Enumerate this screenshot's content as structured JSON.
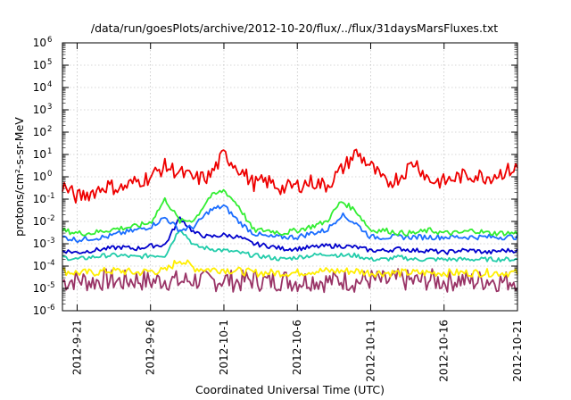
{
  "chart_data": {
    "type": "line",
    "title": "/data/run/goesPlots/archive/2012-10-20/flux/../flux/31daysMarsFluxes.txt",
    "xlabel": "Coordinated Universal Time (UTC)",
    "ylabel": "protons/cm²-s-sr-MeV",
    "y_scale": "log",
    "ylim": [
      1e-06,
      1000000.0
    ],
    "y_ticks": [
      {
        "value": 1e-06,
        "base": "10",
        "exp": "-6"
      },
      {
        "value": 1e-05,
        "base": "10",
        "exp": "-5"
      },
      {
        "value": 0.0001,
        "base": "10",
        "exp": "-4"
      },
      {
        "value": 0.001,
        "base": "10",
        "exp": "-3"
      },
      {
        "value": 0.01,
        "base": "10",
        "exp": "-2"
      },
      {
        "value": 0.1,
        "base": "10",
        "exp": "-1"
      },
      {
        "value": 1.0,
        "base": "10",
        "exp": "0"
      },
      {
        "value": 10.0,
        "base": "10",
        "exp": "1"
      },
      {
        "value": 100.0,
        "base": "10",
        "exp": "2"
      },
      {
        "value": 1000.0,
        "base": "10",
        "exp": "3"
      },
      {
        "value": 10000.0,
        "base": "10",
        "exp": "4"
      },
      {
        "value": 100000.0,
        "base": "10",
        "exp": "5"
      },
      {
        "value": 1000000.0,
        "base": "10",
        "exp": "6"
      }
    ],
    "xlim": [
      "2012-09-20",
      "2012-10-21"
    ],
    "x_ticks": [
      "2012-9-21",
      "2012-9-26",
      "2012-10-1",
      "2012-10-6",
      "2012-10-11",
      "2012-10-16",
      "2012-10-21"
    ],
    "grid": true,
    "legend": "none",
    "series": [
      {
        "color": "#ee0000",
        "x": [
          "2012-09-20",
          "2012-09-21",
          "2012-09-22",
          "2012-09-23",
          "2012-09-24",
          "2012-09-25",
          "2012-09-26",
          "2012-09-27",
          "2012-09-28",
          "2012-09-29",
          "2012-09-30",
          "2012-10-01",
          "2012-10-02",
          "2012-10-03",
          "2012-10-04",
          "2012-10-05",
          "2012-10-06",
          "2012-10-07",
          "2012-10-08",
          "2012-10-09",
          "2012-10-10",
          "2012-10-11",
          "2012-10-12",
          "2012-10-13",
          "2012-10-14",
          "2012-10-15",
          "2012-10-16",
          "2012-10-17",
          "2012-10-18",
          "2012-10-19",
          "2012-10-20",
          "2012-10-21"
        ],
        "values": [
          0.4,
          0.12,
          0.2,
          0.4,
          0.3,
          0.6,
          1.0,
          3.0,
          1.5,
          0.8,
          1.0,
          10.0,
          2.5,
          0.5,
          0.6,
          0.3,
          0.4,
          0.6,
          0.4,
          2.0,
          12.0,
          3.0,
          0.5,
          1.0,
          5.0,
          0.7,
          0.6,
          1.0,
          1.2,
          1.0,
          1.6,
          2.5
        ]
      },
      {
        "color": "#33ee33",
        "x": [
          "2012-09-20",
          "2012-09-21",
          "2012-09-22",
          "2012-09-23",
          "2012-09-24",
          "2012-09-25",
          "2012-09-26",
          "2012-09-27",
          "2012-09-28",
          "2012-09-29",
          "2012-09-30",
          "2012-10-01",
          "2012-10-02",
          "2012-10-03",
          "2012-10-04",
          "2012-10-05",
          "2012-10-06",
          "2012-10-07",
          "2012-10-08",
          "2012-10-09",
          "2012-10-10",
          "2012-10-11",
          "2012-10-12",
          "2012-10-13",
          "2012-10-14",
          "2012-10-15",
          "2012-10-16",
          "2012-10-17",
          "2012-10-18",
          "2012-10-19",
          "2012-10-20",
          "2012-10-21"
        ],
        "values": [
          0.004,
          0.003,
          0.003,
          0.004,
          0.005,
          0.006,
          0.009,
          0.1,
          0.01,
          0.012,
          0.12,
          0.25,
          0.05,
          0.004,
          0.004,
          0.003,
          0.004,
          0.006,
          0.01,
          0.08,
          0.03,
          0.004,
          0.004,
          0.003,
          0.003,
          0.004,
          0.003,
          0.003,
          0.004,
          0.003,
          0.003,
          0.003
        ]
      },
      {
        "color": "#1a6dff",
        "x": [
          "2012-09-20",
          "2012-09-21",
          "2012-09-22",
          "2012-09-23",
          "2012-09-24",
          "2012-09-25",
          "2012-09-26",
          "2012-09-27",
          "2012-09-28",
          "2012-09-29",
          "2012-09-30",
          "2012-10-01",
          "2012-10-02",
          "2012-10-03",
          "2012-10-04",
          "2012-10-05",
          "2012-10-06",
          "2012-10-07",
          "2012-10-08",
          "2012-10-09",
          "2012-10-10",
          "2012-10-11",
          "2012-10-12",
          "2012-10-13",
          "2012-10-14",
          "2012-10-15",
          "2012-10-16",
          "2012-10-17",
          "2012-10-18",
          "2012-10-19",
          "2012-10-20",
          "2012-10-21"
        ],
        "values": [
          0.002,
          0.0015,
          0.0018,
          0.002,
          0.003,
          0.004,
          0.006,
          0.015,
          0.004,
          0.006,
          0.03,
          0.05,
          0.01,
          0.003,
          0.002,
          0.002,
          0.002,
          0.003,
          0.004,
          0.02,
          0.008,
          0.002,
          0.002,
          0.002,
          0.002,
          0.002,
          0.002,
          0.002,
          0.002,
          0.002,
          0.002,
          0.002
        ]
      },
      {
        "color": "#0000cc",
        "x": [
          "2012-09-20",
          "2012-09-21",
          "2012-09-22",
          "2012-09-23",
          "2012-09-24",
          "2012-09-25",
          "2012-09-26",
          "2012-09-27",
          "2012-09-28",
          "2012-09-29",
          "2012-09-30",
          "2012-10-01",
          "2012-10-02",
          "2012-10-03",
          "2012-10-04",
          "2012-10-05",
          "2012-10-06",
          "2012-10-07",
          "2012-10-08",
          "2012-10-09",
          "2012-10-10",
          "2012-10-11",
          "2012-10-12",
          "2012-10-13",
          "2012-10-14",
          "2012-10-15",
          "2012-10-16",
          "2012-10-17",
          "2012-10-18",
          "2012-10-19",
          "2012-10-20",
          "2012-10-21"
        ],
        "values": [
          0.0005,
          0.0004,
          0.0005,
          0.0006,
          0.0007,
          0.0006,
          0.0008,
          0.0009,
          0.015,
          0.003,
          0.002,
          0.0025,
          0.002,
          0.001,
          0.0008,
          0.0006,
          0.0006,
          0.0007,
          0.0008,
          0.0008,
          0.0007,
          0.0005,
          0.0005,
          0.0006,
          0.0005,
          0.0005,
          0.0004,
          0.0005,
          0.0005,
          0.0004,
          0.0005,
          0.0005
        ]
      },
      {
        "color": "#22ccaa",
        "x": [
          "2012-09-20",
          "2012-09-21",
          "2012-09-22",
          "2012-09-23",
          "2012-09-24",
          "2012-09-25",
          "2012-09-26",
          "2012-09-27",
          "2012-09-28",
          "2012-09-29",
          "2012-09-30",
          "2012-10-01",
          "2012-10-02",
          "2012-10-03",
          "2012-10-04",
          "2012-10-05",
          "2012-10-06",
          "2012-10-07",
          "2012-10-08",
          "2012-10-09",
          "2012-10-10",
          "2012-10-11",
          "2012-10-12",
          "2012-10-13",
          "2012-10-14",
          "2012-10-15",
          "2012-10-16",
          "2012-10-17",
          "2012-10-18",
          "2012-10-19",
          "2012-10-20",
          "2012-10-21"
        ],
        "values": [
          0.00025,
          0.0002,
          0.00025,
          0.0003,
          0.0003,
          0.00025,
          0.0003,
          0.0003,
          0.005,
          0.0008,
          0.0006,
          0.0005,
          0.0004,
          0.0003,
          0.00025,
          0.0002,
          0.00025,
          0.0003,
          0.00035,
          0.0003,
          0.0003,
          0.0002,
          0.0002,
          0.00025,
          0.0002,
          0.0002,
          0.0002,
          0.0002,
          0.0002,
          0.0002,
          0.0002,
          0.0002
        ]
      },
      {
        "color": "#ffee00",
        "x": [
          "2012-09-20",
          "2012-09-21",
          "2012-09-22",
          "2012-09-23",
          "2012-09-24",
          "2012-09-25",
          "2012-09-26",
          "2012-09-27",
          "2012-09-28",
          "2012-09-29",
          "2012-09-30",
          "2012-10-01",
          "2012-10-02",
          "2012-10-03",
          "2012-10-04",
          "2012-10-05",
          "2012-10-06",
          "2012-10-07",
          "2012-10-08",
          "2012-10-09",
          "2012-10-10",
          "2012-10-11",
          "2012-10-12",
          "2012-10-13",
          "2012-10-14",
          "2012-10-15",
          "2012-10-16",
          "2012-10-17",
          "2012-10-18",
          "2012-10-19",
          "2012-10-20",
          "2012-10-21"
        ],
        "values": [
          6e-05,
          5e-05,
          5e-05,
          6e-05,
          6e-05,
          5e-05,
          6e-05,
          6e-05,
          0.0002,
          8e-05,
          7e-05,
          7e-05,
          6e-05,
          5e-05,
          5e-05,
          5e-05,
          5e-05,
          6e-05,
          6e-05,
          6e-05,
          6e-05,
          5e-05,
          5e-05,
          5e-05,
          5e-05,
          5e-05,
          5e-05,
          5e-05,
          5e-05,
          5e-05,
          5e-05,
          5e-05
        ]
      },
      {
        "color": "#993366",
        "x": [
          "2012-09-20",
          "2012-09-21",
          "2012-09-22",
          "2012-09-23",
          "2012-09-24",
          "2012-09-25",
          "2012-09-26",
          "2012-09-27",
          "2012-09-28",
          "2012-09-29",
          "2012-09-30",
          "2012-10-01",
          "2012-10-02",
          "2012-10-03",
          "2012-10-04",
          "2012-10-05",
          "2012-10-06",
          "2012-10-07",
          "2012-10-08",
          "2012-10-09",
          "2012-10-10",
          "2012-10-11",
          "2012-10-12",
          "2012-10-13",
          "2012-10-14",
          "2012-10-15",
          "2012-10-16",
          "2012-10-17",
          "2012-10-18",
          "2012-10-19",
          "2012-10-20",
          "2012-10-21"
        ],
        "values": [
          2e-05,
          2.5e-05,
          2e-05,
          2.5e-05,
          2e-05,
          2.5e-05,
          2e-05,
          2.5e-05,
          2e-05,
          2.5e-05,
          2e-05,
          2.5e-05,
          2e-05,
          2.5e-05,
          2e-05,
          2.5e-05,
          2e-05,
          2.5e-05,
          2e-05,
          2.5e-05,
          2e-05,
          2.5e-05,
          2e-05,
          2.5e-05,
          2e-05,
          2.5e-05,
          2e-05,
          2.5e-05,
          2e-05,
          2.5e-05,
          2e-05,
          2.5e-05
        ]
      }
    ]
  }
}
